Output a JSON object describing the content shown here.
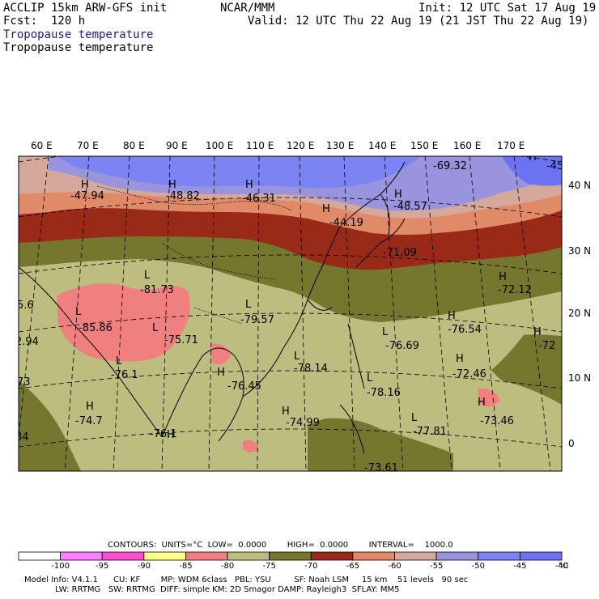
{
  "header": {
    "model": "ACCLIP 15km ARW-GFS init",
    "org": "NCAR/MMM",
    "init": "Init: 12 UTC Sat 17 Aug 19",
    "fcst": "Fcst:  120 h",
    "valid": "Valid: 12 UTC Thu 22 Aug 19 (21 JST Thu 22 Aug 19)",
    "field_title_1": "Tropopause temperature",
    "field_title_2": "Tropopause temperature"
  },
  "map": {
    "lon_labels": [
      "60 E",
      "70 E",
      "80 E",
      "90 E",
      "100 E",
      "110 E",
      "120 E",
      "130 E",
      "140 E",
      "150 E",
      "160 E",
      "170 E"
    ],
    "lat_labels": [
      "40 N",
      "30 N",
      "20 N",
      "10 N",
      "0"
    ],
    "band_colors": {
      "lt_minus_55": "#d4a89a",
      "lt_minus_50": "#9a93dd",
      "lt_minus_45": "#7b84f2",
      "lt_minus_40": "#6c73f2",
      "band_60": "#e08a68",
      "band_65": "#9a2a18",
      "band_70": "#76772e",
      "band_75": "#bdbd80",
      "band_80": "#f08080"
    },
    "highs": [
      {
        "mark": "H",
        "value": "-47.94"
      },
      {
        "mark": "H",
        "value": "-48.82"
      },
      {
        "mark": "H",
        "value": "-46.31"
      },
      {
        "mark": "H",
        "value": "-44.19"
      },
      {
        "mark": "H",
        "value": "-48.57"
      },
      {
        "mark": "",
        "value": "-69.32"
      },
      {
        "mark": "H",
        "value": "-45"
      },
      {
        "mark": "H",
        "value": "-72.12"
      },
      {
        "mark": "H",
        "value": "-76.54"
      },
      {
        "mark": "H",
        "value": "-72"
      },
      {
        "mark": "H",
        "value": "-72.46"
      },
      {
        "mark": "H",
        "value": "-73.46"
      },
      {
        "mark": "H",
        "value": "-74.99"
      },
      {
        "mark": "H",
        "value": "-76.45"
      },
      {
        "mark": "H",
        "value": "-76.1"
      },
      {
        "mark": "H",
        "value": "-74.7"
      },
      {
        "mark": "",
        "value": "-71.09"
      }
    ],
    "lows": [
      {
        "mark": "L",
        "value": "-81.73"
      },
      {
        "mark": "L",
        "value": "-85.86"
      },
      {
        "mark": "L",
        "value": "-75.71"
      },
      {
        "mark": "L",
        "value": "-79.57"
      },
      {
        "mark": "L",
        "value": "-78.14"
      },
      {
        "mark": "L",
        "value": "-76.69"
      },
      {
        "mark": "L",
        "value": "-78.16"
      },
      {
        "mark": "L",
        "value": "-77.81"
      },
      {
        "mark": "L",
        "value": "-76.1"
      },
      {
        "mark": "",
        "value": "-73.61"
      }
    ],
    "edge_values": [
      "5.6",
      "2.94",
      "73",
      "84"
    ]
  },
  "colorbar": {
    "contours_line": "CONTOURS:  UNITS=°C  LOW=  0.0000        HIGH=  0.0000        INTERVAL=    1000.0",
    "colors": [
      "#ffffff",
      "#ff80ff",
      "#ff4fd0",
      "#ffff8a",
      "#f08080",
      "#bdbd80",
      "#76772e",
      "#9a2a18",
      "#e08a68",
      "#d4a89a",
      "#9a93dd",
      "#7b84f2",
      "#6c73f2"
    ],
    "tick_labels": [
      "-100",
      "-95",
      "-90",
      "-85",
      "-80",
      "-75",
      "-70",
      "-65",
      "-60",
      "-55",
      "-50",
      "-45",
      "-40"
    ],
    "unit": "°C"
  },
  "footer": {
    "line1": "Model Info: V4.1.1      CU: KF        MP: WDM 6class   PBL: YSU         SF: Noah LSM     15 km    51 levels   90 sec",
    "line2": "            LW: RRTMG   SW: RRTMG  DIFF: simple KM: 2D Smagor DAMP: Rayleigh3  SFLAY: MM5"
  }
}
